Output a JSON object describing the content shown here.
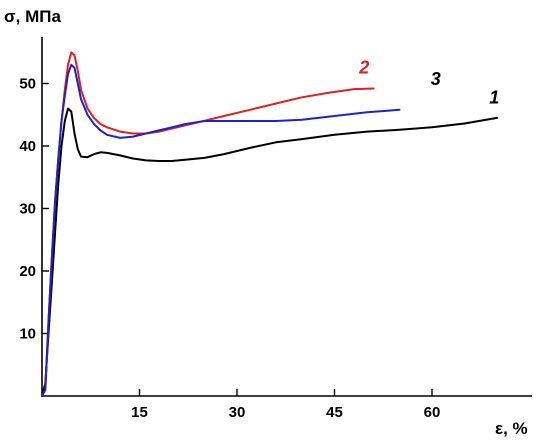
{
  "chart_data": {
    "type": "line",
    "title": "",
    "ylabel": "σ, МПа",
    "xlabel": "ε, %",
    "xlim": [
      0,
      75
    ],
    "ylim": [
      0,
      57
    ],
    "x_ticks": [
      15,
      30,
      45,
      60
    ],
    "y_ticks": [
      10,
      20,
      30,
      40,
      50
    ],
    "grid": false,
    "series": [
      {
        "name": "1",
        "color": "#000000",
        "points": [
          [
            0,
            0
          ],
          [
            0.5,
            2
          ],
          [
            1,
            10
          ],
          [
            1.5,
            18
          ],
          [
            2,
            26
          ],
          [
            2.5,
            34
          ],
          [
            3,
            40
          ],
          [
            3.5,
            44
          ],
          [
            4,
            46
          ],
          [
            4.5,
            45.5
          ],
          [
            5,
            42
          ],
          [
            5.5,
            39.5
          ],
          [
            6,
            38.3
          ],
          [
            7,
            38.2
          ],
          [
            8,
            38.7
          ],
          [
            9,
            39
          ],
          [
            10,
            38.9
          ],
          [
            12,
            38.5
          ],
          [
            14,
            38
          ],
          [
            16,
            37.7
          ],
          [
            18,
            37.6
          ],
          [
            20,
            37.6
          ],
          [
            22,
            37.8
          ],
          [
            25,
            38.1
          ],
          [
            28,
            38.7
          ],
          [
            32,
            39.7
          ],
          [
            36,
            40.6
          ],
          [
            40,
            41.1
          ],
          [
            45,
            41.8
          ],
          [
            50,
            42.3
          ],
          [
            55,
            42.6
          ],
          [
            60,
            43
          ],
          [
            65,
            43.6
          ],
          [
            70,
            44.5
          ]
        ]
      },
      {
        "name": "2",
        "color": "#e02020",
        "points": [
          [
            0,
            0
          ],
          [
            0.5,
            1
          ],
          [
            1,
            12
          ],
          [
            1.5,
            22
          ],
          [
            2,
            31
          ],
          [
            2.5,
            38
          ],
          [
            3,
            44
          ],
          [
            3.5,
            49
          ],
          [
            4,
            53
          ],
          [
            4.5,
            55
          ],
          [
            5,
            54.5
          ],
          [
            5.5,
            52
          ],
          [
            6,
            49
          ],
          [
            7,
            46
          ],
          [
            8,
            44.5
          ],
          [
            9,
            43.5
          ],
          [
            10,
            43
          ],
          [
            12,
            42.3
          ],
          [
            14,
            42
          ],
          [
            16,
            42
          ],
          [
            18,
            42.3
          ],
          [
            20,
            42.8
          ],
          [
            24,
            43.8
          ],
          [
            28,
            44.8
          ],
          [
            32,
            45.8
          ],
          [
            36,
            46.8
          ],
          [
            40,
            47.8
          ],
          [
            44,
            48.5
          ],
          [
            48,
            49.1
          ],
          [
            51,
            49.2
          ]
        ]
      },
      {
        "name": "3",
        "color": "#2020d0",
        "points": [
          [
            0,
            0
          ],
          [
            0.5,
            1
          ],
          [
            1,
            12
          ],
          [
            1.5,
            22
          ],
          [
            2,
            31
          ],
          [
            2.5,
            38
          ],
          [
            3,
            44
          ],
          [
            3.5,
            48
          ],
          [
            4,
            51.5
          ],
          [
            4.5,
            53
          ],
          [
            5,
            52.5
          ],
          [
            5.5,
            50
          ],
          [
            6,
            47.5
          ],
          [
            7,
            45
          ],
          [
            8,
            43.5
          ],
          [
            9,
            42.5
          ],
          [
            10,
            41.8
          ],
          [
            12,
            41.3
          ],
          [
            14,
            41.5
          ],
          [
            16,
            42
          ],
          [
            18,
            42.5
          ],
          [
            20,
            43
          ],
          [
            22,
            43.5
          ],
          [
            25,
            44
          ],
          [
            28,
            44
          ],
          [
            32,
            44
          ],
          [
            36,
            44
          ],
          [
            40,
            44.2
          ],
          [
            45,
            44.8
          ],
          [
            50,
            45.4
          ],
          [
            55,
            45.8
          ]
        ]
      }
    ],
    "curve_labels": [
      {
        "text": "1",
        "x": 68.8,
        "y": 46.8,
        "color": "#000000"
      },
      {
        "text": "2",
        "x": 48.8,
        "y": 51.6,
        "color": "#e02020"
      },
      {
        "text": "3",
        "x": 59.8,
        "y": 49.8,
        "color": "#000000"
      }
    ]
  }
}
